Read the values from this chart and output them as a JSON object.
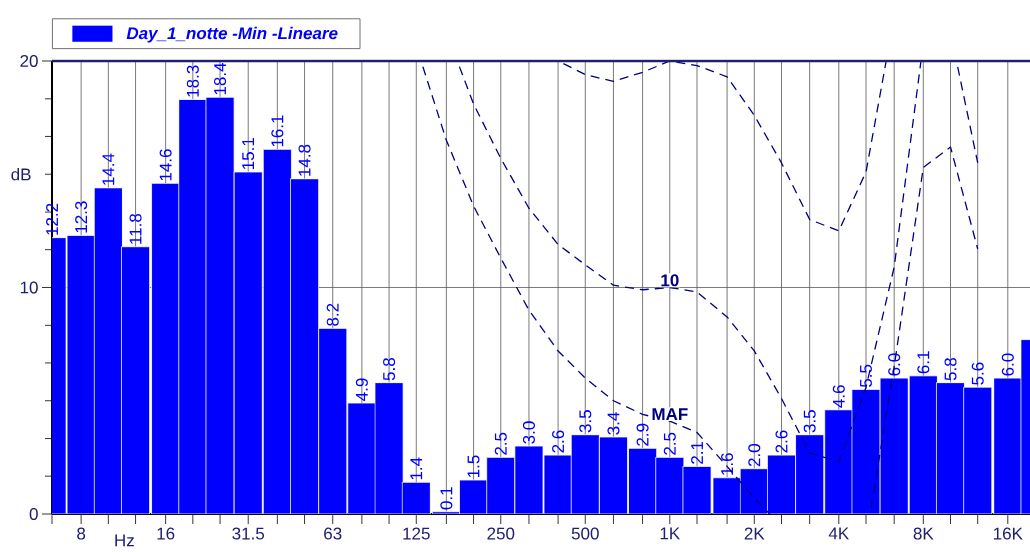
{
  "chart_data": {
    "type": "bar",
    "xlabel": "Hz",
    "ylabel": "dB",
    "log": "x",
    "xlim": [
      6.3,
      20000
    ],
    "ylim": [
      0,
      20
    ],
    "grid": true,
    "legend": "top",
    "x": [
      6.3,
      8,
      10,
      12.5,
      16,
      20,
      25,
      31.5,
      40,
      50,
      63,
      80,
      100,
      125,
      160,
      200,
      250,
      315,
      400,
      500,
      630,
      800,
      1000,
      1250,
      1600,
      2000,
      2500,
      3150,
      4000,
      5000,
      6300,
      8000,
      10000,
      12500,
      16000,
      20000
    ],
    "xticks": [
      {
        "value": 6.3,
        "label": null
      },
      8,
      {
        "value": 10,
        "label": null
      },
      {
        "value": 12.5,
        "label": null
      },
      16,
      {
        "value": 20,
        "label": null
      },
      {
        "value": 25,
        "label": null
      },
      31.5,
      {
        "value": 40,
        "label": null
      },
      {
        "value": 50,
        "label": null
      },
      63,
      {
        "value": 80,
        "label": null
      },
      {
        "value": 100,
        "label": null
      },
      125,
      {
        "value": 160,
        "label": null
      },
      {
        "value": 200,
        "label": null
      },
      250,
      {
        "value": 315,
        "label": null
      },
      {
        "value": 400,
        "label": null
      },
      500,
      {
        "value": 630,
        "label": null
      },
      {
        "value": 800,
        "label": null
      },
      {
        "value": 1000,
        "label": "1K"
      },
      {
        "value": 1250,
        "label": null
      },
      {
        "value": 1600,
        "label": null
      },
      {
        "value": 2000,
        "label": "2K"
      },
      {
        "value": 2500,
        "label": null
      },
      {
        "value": 3150,
        "label": null
      },
      {
        "value": 4000,
        "label": "4K"
      },
      {
        "value": 5000,
        "label": null
      },
      {
        "value": 6300,
        "label": null
      },
      {
        "value": 8000,
        "label": "8K"
      },
      {
        "value": 10000,
        "label": null
      },
      {
        "value": 12500,
        "label": null
      },
      {
        "value": 16000,
        "label": "16K"
      }
    ],
    "yticks": [
      0,
      {
        "value": 1.67,
        "label": null
      },
      {
        "value": 3.33,
        "label": null
      },
      {
        "value": 5,
        "label": null
      },
      {
        "value": 6.67,
        "label": null
      },
      {
        "value": 8.33,
        "label": null
      },
      10,
      {
        "value": 11.67,
        "label": null
      },
      {
        "value": 13.33,
        "label": null
      },
      {
        "value": 15,
        "label": null
      },
      {
        "value": 16.67,
        "label": null
      },
      {
        "value": 18.33,
        "label": null
      },
      20
    ],
    "series": [
      {
        "name": "Day_1_notte -Min -Lineare",
        "color": "#0000ff",
        "values": [
          12.2,
          12.3,
          14.4,
          11.8,
          14.6,
          18.3,
          18.4,
          15.1,
          16.1,
          14.8,
          8.2,
          4.9,
          5.8,
          1.4,
          0.1,
          1.5,
          2.5,
          3.0,
          2.6,
          3.5,
          3.4,
          2.9,
          2.5,
          2.1,
          1.6,
          2.0,
          2.6,
          3.5,
          4.6,
          5.5,
          6.0,
          6.1,
          5.8,
          5.6,
          6.0,
          7.7
        ],
        "value_labels": [
          "12.2",
          "12.3",
          "14.4",
          "11.8",
          "14.6",
          "18.3",
          "18.4",
          "15.1",
          "16.1",
          "14.8",
          "8.2",
          "4.9",
          "5.8",
          "1.4",
          "0.1",
          "1.5",
          "2.5",
          "3.0",
          "2.6",
          "3.5",
          "3.4",
          "2.9",
          "2.5",
          "2.1",
          "1.6",
          "2.0",
          "2.6",
          "3.5",
          "4.6",
          "5.5",
          "6.0",
          "6.1",
          "5.8",
          "5.6",
          "6.0",
          null
        ]
      },
      {
        "name": "10",
        "type": "line",
        "color": "#000080",
        "line_style": "dashed",
        "x": [
          175,
          200,
          250,
          315,
          400,
          500,
          630,
          800,
          1000,
          1250,
          1600,
          2000,
          2500,
          3150,
          4000,
          5000,
          6300,
          7850,
          9000,
          10500,
          12500
        ],
        "values": [
          20,
          18.1,
          15.7,
          13.5,
          11.9,
          11.0,
          10.1,
          9.9,
          10.0,
          9.8,
          8.7,
          7.2,
          5.1,
          2.7,
          2.3,
          5.6,
          10.9,
          20,
          null,
          20,
          15.5
        ]
      },
      {
        "name": "MAF",
        "type": "line",
        "color": "#000080",
        "line_style": "dashed",
        "x": [
          130,
          160,
          200,
          250,
          315,
          400,
          500,
          630,
          800,
          1000,
          1250,
          1600,
          2000,
          2270,
          3150,
          5170,
          6300,
          8000,
          10000,
          12500
        ],
        "values": [
          20,
          16.5,
          13.6,
          11.3,
          9.0,
          7.2,
          6.0,
          5.0,
          4.4,
          4.1,
          3.6,
          2.1,
          0.7,
          0,
          null,
          0,
          6.5,
          15.3,
          16.2,
          11.7
        ]
      },
      {
        "type": "line",
        "color": "#000080",
        "line_style": "dashed",
        "x": [
          400,
          500,
          630,
          800,
          1000,
          1250,
          1600,
          2000,
          2500,
          3150,
          4000,
          5000,
          5900
        ],
        "values": [
          20,
          19.4,
          19.1,
          19.5,
          20,
          19.8,
          19.3,
          17.6,
          15.5,
          13.0,
          12.5,
          15.1,
          20
        ]
      }
    ]
  }
}
